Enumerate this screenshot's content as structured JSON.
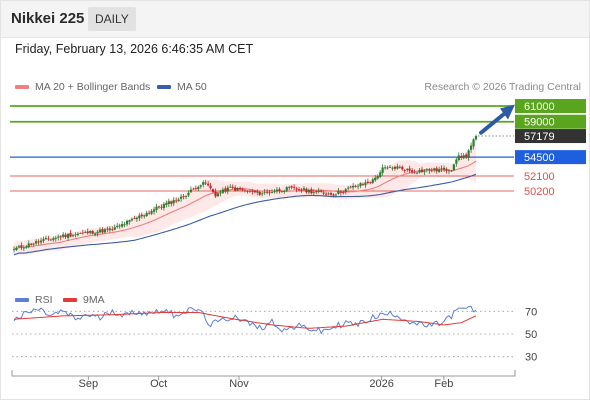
{
  "header": {
    "title": "Nikkei 225",
    "period": "DAILY"
  },
  "timestamp": "Friday, February 13, 2026 6:46:35 AM CET",
  "credit": "Research © 2026 Trading Central",
  "colors": {
    "up_candle": "#2e7d32",
    "down_candle": "#c62828",
    "bollinger_fill": "#fde0e0",
    "ma20": "#f08080",
    "ma50": "#3b5ea8",
    "resistance": "#5aa51e",
    "pivot": "#1e5fe0",
    "support": "#e0504a",
    "current": "#333333",
    "arrow": "#2a5aa8",
    "rsi": "#5b7fd6",
    "rsi_ma": "#e53935"
  },
  "chart_data": [
    {
      "type": "candlestick",
      "title": "Nikkei 225",
      "legend": [
        {
          "name": "MA 20 + Bollinger Bands",
          "color": "#f08080"
        },
        {
          "name": "MA 50",
          "color": "#3b5ea8"
        }
      ],
      "x_ticks": [
        "Sep",
        "Oct",
        "Nov",
        "2026",
        "Feb"
      ],
      "levels": [
        {
          "label": "61000",
          "value": 61000,
          "kind": "resistance"
        },
        {
          "label": "59000",
          "value": 59000,
          "kind": "resistance"
        },
        {
          "label": "57179",
          "value": 57179,
          "kind": "current"
        },
        {
          "label": "54500",
          "value": 54500,
          "kind": "pivot"
        },
        {
          "label": "52100",
          "value": 52100,
          "kind": "support"
        },
        {
          "label": "50200",
          "value": 50200,
          "kind": "support"
        }
      ],
      "close_anchors": [
        [
          0,
          42800
        ],
        [
          8,
          43600
        ],
        [
          20,
          44500
        ],
        [
          30,
          44900
        ],
        [
          40,
          45300
        ],
        [
          50,
          46800
        ],
        [
          60,
          48300
        ],
        [
          68,
          49300
        ],
        [
          75,
          50900
        ],
        [
          78,
          51200
        ],
        [
          82,
          49700
        ],
        [
          88,
          50600
        ],
        [
          94,
          50200
        ],
        [
          100,
          49900
        ],
        [
          106,
          50200
        ],
        [
          112,
          50500
        ],
        [
          118,
          50300
        ],
        [
          124,
          50000
        ],
        [
          130,
          49800
        ],
        [
          138,
          50700
        ],
        [
          146,
          51500
        ],
        [
          150,
          53000
        ],
        [
          156,
          53200
        ],
        [
          162,
          52700
        ],
        [
          168,
          52800
        ],
        [
          174,
          52900
        ],
        [
          178,
          53000
        ],
        [
          180,
          54400
        ],
        [
          184,
          54700
        ],
        [
          188,
          57179
        ]
      ],
      "ylim": [
        38000,
        62000
      ]
    },
    {
      "type": "line",
      "title": "RSI",
      "series": [
        {
          "name": "RSI",
          "color": "#5b7fd6"
        },
        {
          "name": "9MA",
          "color": "#e53935"
        }
      ],
      "y_ticks": [
        70,
        50,
        30
      ],
      "ylim": [
        20,
        80
      ],
      "rsi_anchors": [
        [
          0,
          62
        ],
        [
          5,
          68
        ],
        [
          10,
          72
        ],
        [
          15,
          66
        ],
        [
          20,
          70
        ],
        [
          25,
          63
        ],
        [
          30,
          67
        ],
        [
          35,
          64
        ],
        [
          40,
          71
        ],
        [
          45,
          66
        ],
        [
          50,
          70
        ],
        [
          55,
          68
        ],
        [
          60,
          72
        ],
        [
          65,
          67
        ],
        [
          70,
          70
        ],
        [
          75,
          72
        ],
        [
          80,
          58
        ],
        [
          85,
          62
        ],
        [
          90,
          66
        ],
        [
          95,
          60
        ],
        [
          100,
          55
        ],
        [
          105,
          61
        ],
        [
          110,
          53
        ],
        [
          115,
          57
        ],
        [
          120,
          55
        ],
        [
          125,
          52
        ],
        [
          130,
          56
        ],
        [
          135,
          60
        ],
        [
          140,
          58
        ],
        [
          145,
          64
        ],
        [
          150,
          67
        ],
        [
          155,
          68
        ],
        [
          160,
          62
        ],
        [
          165,
          58
        ],
        [
          170,
          57
        ],
        [
          175,
          61
        ],
        [
          180,
          70
        ],
        [
          184,
          73
        ],
        [
          188,
          71
        ]
      ],
      "rsi_ma_anchors": [
        [
          0,
          63
        ],
        [
          20,
          66
        ],
        [
          40,
          67
        ],
        [
          60,
          69
        ],
        [
          75,
          69
        ],
        [
          90,
          63
        ],
        [
          105,
          58
        ],
        [
          120,
          55
        ],
        [
          135,
          57
        ],
        [
          150,
          63
        ],
        [
          165,
          61
        ],
        [
          175,
          58
        ],
        [
          182,
          60
        ],
        [
          188,
          66
        ]
      ]
    }
  ]
}
